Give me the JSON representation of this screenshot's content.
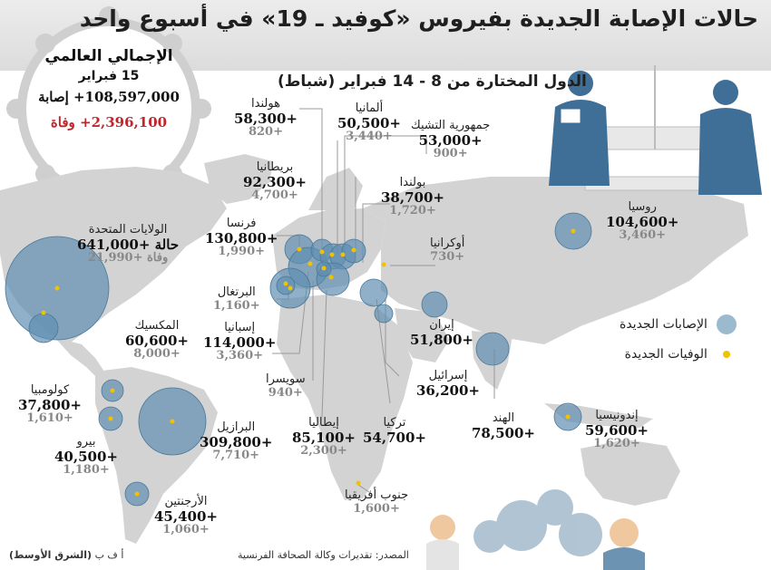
{
  "title": "حالات الإصابة الجديدة بفيروس «كوفيد ـ 19» في أسبوع واحد",
  "subtitle": "الدول المختارة من 8 - 14 فبراير (شباط)",
  "global": {
    "title": "الإجمالي العالمي",
    "date": "15 فبراير",
    "cases": "108,597,000+ إصابة",
    "deaths_value": "2,396,100+",
    "deaths_unit": "وفاة"
  },
  "countries": [
    {
      "id": "usa",
      "name": "الولايات المتحدة",
      "cases": "641,000+ حالة",
      "deaths": "21,990+ وفاة"
    },
    {
      "id": "netherlands",
      "name": "هولندا",
      "cases": "58,300+",
      "deaths": "820+"
    },
    {
      "id": "germany",
      "name": "ألمانيا",
      "cases": "50,500+",
      "deaths": "3,440+"
    },
    {
      "id": "czech",
      "name": "جمهورية التشيك",
      "cases": "53,000+",
      "deaths": "900+"
    },
    {
      "id": "uk",
      "name": "بريطانيا",
      "cases": "92,300+",
      "deaths": "4,700+"
    },
    {
      "id": "poland",
      "name": "بولندا",
      "cases": "38,700+",
      "deaths": "1,720+"
    },
    {
      "id": "france",
      "name": "فرنسا",
      "cases": "130,800+",
      "deaths": "1,990+"
    },
    {
      "id": "ukraine",
      "name": "أوكرانيا",
      "cases": "",
      "deaths": "730+"
    },
    {
      "id": "russia",
      "name": "روسيا",
      "cases": "104,600+",
      "deaths": "3,460+"
    },
    {
      "id": "portugal",
      "name": "البرتغال",
      "cases": "",
      "deaths": "1,160+"
    },
    {
      "id": "spain",
      "name": "إسبانيا",
      "cases": "114,000+",
      "deaths": "3,360+"
    },
    {
      "id": "mexico",
      "name": "المكسيك",
      "cases": "60,600+",
      "deaths": "8,000+"
    },
    {
      "id": "iran",
      "name": "إيران",
      "cases": "51,800+",
      "deaths": ""
    },
    {
      "id": "israel",
      "name": "إسرائيل",
      "cases": "36,200+",
      "deaths": ""
    },
    {
      "id": "switzerland",
      "name": "سويسرا",
      "cases": "",
      "deaths": "940+"
    },
    {
      "id": "colombia",
      "name": "كولومبيا",
      "cases": "37,800+",
      "deaths": "1,610+"
    },
    {
      "id": "peru",
      "name": "بيرو",
      "cases": "40,500+",
      "deaths": "1,180+"
    },
    {
      "id": "brazil",
      "name": "البرازيل",
      "cases": "309,800+",
      "deaths": "7,710+"
    },
    {
      "id": "italy",
      "name": "إيطاليا",
      "cases": "85,100+",
      "deaths": "2,300+"
    },
    {
      "id": "turkey",
      "name": "تركيا",
      "cases": "54,700+",
      "deaths": ""
    },
    {
      "id": "india",
      "name": "الهند",
      "cases": "78,500+",
      "deaths": ""
    },
    {
      "id": "indonesia",
      "name": "إندونيسيا",
      "cases": "59,600+",
      "deaths": "1,620+"
    },
    {
      "id": "argentina",
      "name": "الأرجنتين",
      "cases": "45,400+",
      "deaths": "1,060+"
    },
    {
      "id": "south_africa",
      "name": "جنوب أفريقيا",
      "cases": "",
      "deaths": "1,600+"
    }
  ],
  "legend": {
    "new_cases": "الإصابات الجديدة",
    "new_deaths": "الوفيات الجديدة"
  },
  "source": "المصدر: تقديرات وكالة الصحافة الفرنسية",
  "credit_prefix": "أ ف ب",
  "credit_outlet": "(الشرق الأوسط)",
  "colors": {
    "land": "#d3d3d3",
    "bubble": "#5f8fb0",
    "dot": "#f2c200",
    "deaths_red": "#c0272d",
    "header": "#e3e3e3",
    "illustration": "#3f6f96"
  }
}
